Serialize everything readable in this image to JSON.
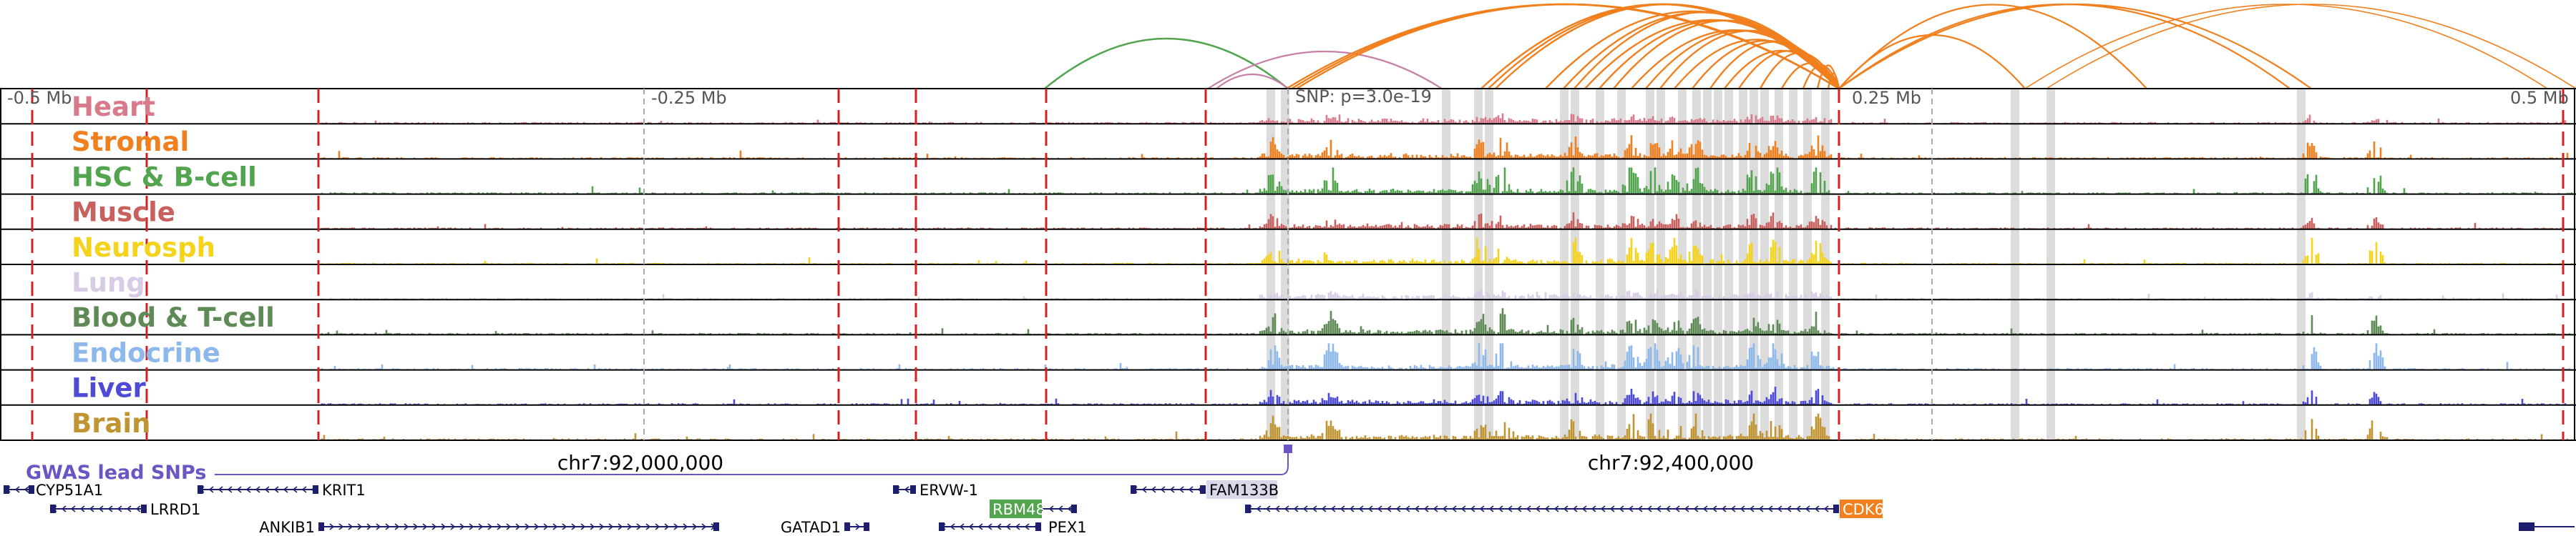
{
  "ruler": {
    "labels": [
      "-0.5 Mb",
      "-0.25 Mb",
      "0.25 Mb",
      "0.5 Mb"
    ],
    "snp_label": "SNP: p=3.0e-19"
  },
  "tracks": [
    {
      "name": "Heart",
      "color": "#d97a8a"
    },
    {
      "name": "Stromal",
      "color": "#f07f1e"
    },
    {
      "name": "HSC & B-cell",
      "color": "#52a44f"
    },
    {
      "name": "Muscle",
      "color": "#c8605e"
    },
    {
      "name": "Neurosph",
      "color": "#f5d31a"
    },
    {
      "name": "Lung",
      "color": "#d7cbe6"
    },
    {
      "name": "Blood & T-cell",
      "color": "#5e8a55"
    },
    {
      "name": "Endocrine",
      "color": "#8db8ec"
    },
    {
      "name": "Liver",
      "color": "#4c4ad7"
    },
    {
      "name": "Brain",
      "color": "#c09430"
    }
  ],
  "gwas": {
    "label": "GWAS lead SNPs",
    "color": "#6a55c2"
  },
  "coordinates": [
    "chr7:92,000,000",
    "chr7:92,400,000"
  ],
  "genes": [
    {
      "name": "CYP51A1",
      "row": 1,
      "strand": "-",
      "highlight": ""
    },
    {
      "name": "KRIT1",
      "row": 1,
      "strand": "-",
      "highlight": ""
    },
    {
      "name": "ERVW-1",
      "row": 1,
      "strand": "-",
      "highlight": ""
    },
    {
      "name": "FAM133B",
      "row": 1,
      "strand": "-",
      "highlight": "#d8d8ea"
    },
    {
      "name": "LRRD1",
      "row": 2,
      "strand": "-",
      "highlight": ""
    },
    {
      "name": "RBM48",
      "row": 2,
      "strand": "-",
      "highlight": "#52a44f"
    },
    {
      "name": "ANKIB1",
      "row": 3,
      "strand": "+",
      "highlight": ""
    },
    {
      "name": "GATAD1",
      "row": 3,
      "strand": "+",
      "highlight": ""
    },
    {
      "name": "PEX1",
      "row": 3,
      "strand": "-",
      "highlight": ""
    },
    {
      "name": "CDK6",
      "row": 2,
      "strand": "-",
      "highlight": "#f07f1e"
    }
  ],
  "colors": {
    "boundary_dash": "#d42020",
    "highlight_band": "#dcdcdc",
    "loop_main": "#f07f1e",
    "loop_green": "#52a44f",
    "loop_pink": "#c77fa8",
    "gene_body": "#1e1e6e"
  }
}
